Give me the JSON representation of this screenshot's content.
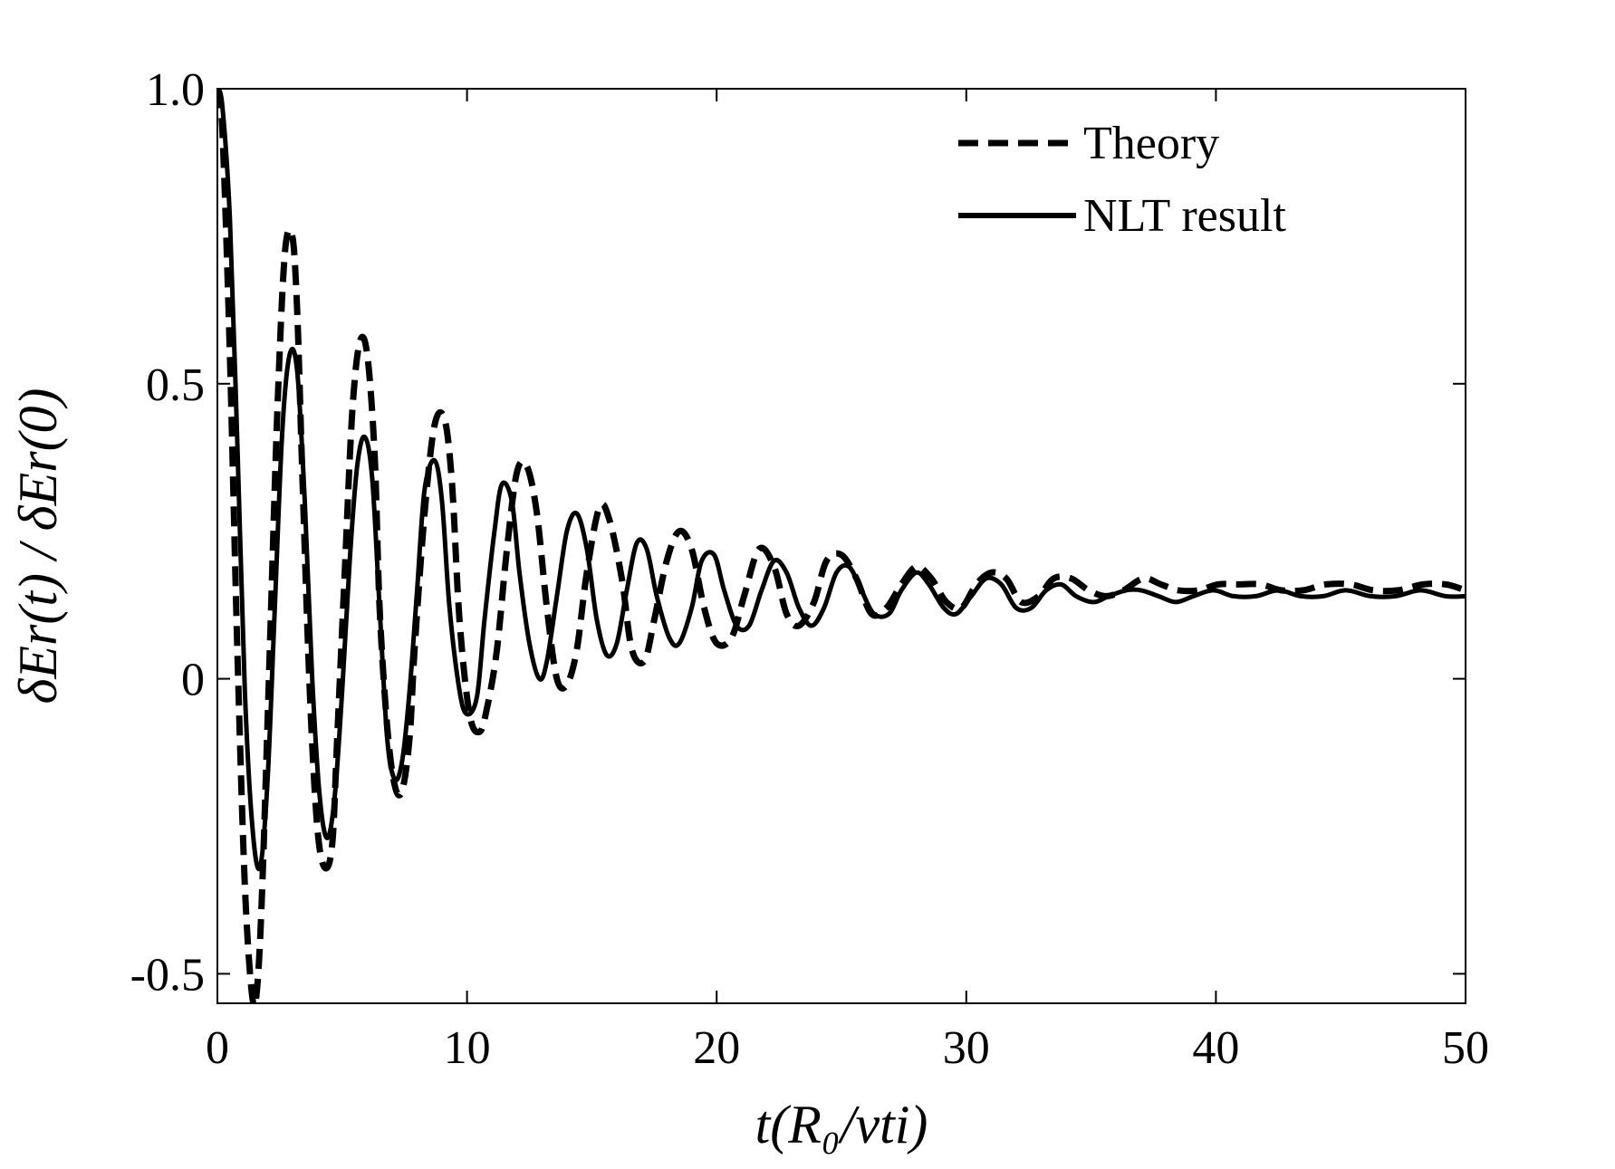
{
  "chart_data": {
    "type": "line",
    "title": "",
    "xlabel": "t(R₀/vti)",
    "ylabel": "δEr(t) / δEr(0)",
    "xlim": [
      0,
      50
    ],
    "ylim": [
      -0.55,
      1.0
    ],
    "xticks": [
      0,
      10,
      20,
      30,
      40,
      50
    ],
    "xtick_labels": [
      "0",
      "10",
      "20",
      "30",
      "40",
      "50"
    ],
    "yticks": [
      -0.5,
      0,
      0.5,
      1.0
    ],
    "ytick_labels": [
      "-0.5",
      "0",
      "0.5",
      "1.0"
    ],
    "grid": false,
    "legend_position": "top-right",
    "series": [
      {
        "name": "Theory",
        "style": "dashed",
        "color": "#000000",
        "x": [
          0,
          0.2,
          0.5,
          0.8,
          1.1,
          1.4,
          1.6,
          1.8,
          2.1,
          2.4,
          2.7,
          3.0,
          3.2,
          3.4,
          3.7,
          4.0,
          4.3,
          4.6,
          4.8,
          5.1,
          5.4,
          5.7,
          6.0,
          6.3,
          6.5,
          6.8,
          7.1,
          7.4,
          7.7,
          7.9,
          8.3,
          8.7,
          9.1,
          9.4,
          9.7,
          10.1,
          10.5,
          10.8,
          11.2,
          11.6,
          12.0,
          12.4,
          12.8,
          13.2,
          13.6,
          14.0,
          14.4,
          14.8,
          15.3,
          15.7,
          16.2,
          16.6,
          17.1,
          17.5,
          18.0,
          18.5,
          19.0,
          19.5,
          20.0,
          20.6,
          21.1,
          21.7,
          22.3,
          22.8,
          23.3,
          23.9,
          24.4,
          25.0,
          25.6,
          26.2,
          26.8,
          27.4,
          28.0,
          28.6,
          29.2,
          29.8,
          30.4,
          31.0,
          31.6,
          32.2,
          32.9,
          33.5,
          34.2,
          34.9,
          35.6,
          36.3,
          37.1,
          37.8,
          38.5,
          39.3,
          40.1,
          40.9,
          41.8,
          42.6,
          43.5,
          44.4,
          45.4,
          46.3,
          47.3,
          48.3,
          49.2,
          50.0
        ],
        "y": [
          1.0,
          0.93,
          0.55,
          0.05,
          -0.35,
          -0.54,
          -0.52,
          -0.35,
          0.05,
          0.45,
          0.72,
          0.75,
          0.62,
          0.35,
          -0.02,
          -0.25,
          -0.32,
          -0.28,
          -0.1,
          0.18,
          0.45,
          0.57,
          0.55,
          0.38,
          0.12,
          -0.08,
          -0.18,
          -0.19,
          -0.1,
          0.05,
          0.28,
          0.43,
          0.44,
          0.33,
          0.1,
          -0.06,
          -0.09,
          -0.05,
          0.05,
          0.22,
          0.35,
          0.36,
          0.28,
          0.12,
          0.0,
          -0.01,
          0.05,
          0.18,
          0.29,
          0.27,
          0.17,
          0.05,
          0.03,
          0.1,
          0.2,
          0.25,
          0.22,
          0.12,
          0.06,
          0.07,
          0.14,
          0.22,
          0.19,
          0.11,
          0.09,
          0.13,
          0.2,
          0.21,
          0.17,
          0.11,
          0.12,
          0.16,
          0.19,
          0.17,
          0.13,
          0.12,
          0.16,
          0.18,
          0.17,
          0.13,
          0.14,
          0.17,
          0.17,
          0.15,
          0.14,
          0.15,
          0.17,
          0.16,
          0.15,
          0.15,
          0.16,
          0.16,
          0.16,
          0.15,
          0.15,
          0.16,
          0.16,
          0.15,
          0.15,
          0.16,
          0.16,
          0.15
        ]
      },
      {
        "name": "NLT result",
        "style": "solid",
        "color": "#000000",
        "x": [
          0,
          0.2,
          0.5,
          0.8,
          1.1,
          1.4,
          1.7,
          2.0,
          2.3,
          2.6,
          2.9,
          3.2,
          3.5,
          3.8,
          4.1,
          4.4,
          4.7,
          5.0,
          5.3,
          5.6,
          5.9,
          6.2,
          6.5,
          6.8,
          7.1,
          7.4,
          7.7,
          8.0,
          8.3,
          8.7,
          9.0,
          9.3,
          9.7,
          10.0,
          10.4,
          10.7,
          11.1,
          11.4,
          11.8,
          12.1,
          12.5,
          12.9,
          13.2,
          13.6,
          14.0,
          14.4,
          14.8,
          15.2,
          15.6,
          16.0,
          16.4,
          16.8,
          17.2,
          17.6,
          18.1,
          18.5,
          19.0,
          19.4,
          19.9,
          20.3,
          20.8,
          21.3,
          21.8,
          22.3,
          22.8,
          23.3,
          23.8,
          24.3,
          24.8,
          25.3,
          25.8,
          26.3,
          26.9,
          27.4,
          28.0,
          28.5,
          29.1,
          29.6,
          30.2,
          30.8,
          31.4,
          32.0,
          32.6,
          33.2,
          33.8,
          34.4,
          35.1,
          35.7,
          36.4,
          37.0,
          37.7,
          38.4,
          39.1,
          39.9,
          40.7,
          41.6,
          42.5,
          43.4,
          44.3,
          45.2,
          46.2,
          47.2,
          48.2,
          49.2,
          50.0
        ],
        "y": [
          1.0,
          0.97,
          0.78,
          0.4,
          -0.02,
          -0.25,
          -0.32,
          -0.18,
          0.12,
          0.42,
          0.55,
          0.52,
          0.3,
          0.0,
          -0.2,
          -0.27,
          -0.2,
          -0.02,
          0.2,
          0.36,
          0.41,
          0.34,
          0.12,
          -0.1,
          -0.17,
          -0.14,
          -0.02,
          0.15,
          0.32,
          0.37,
          0.3,
          0.12,
          -0.02,
          -0.06,
          -0.03,
          0.1,
          0.25,
          0.33,
          0.3,
          0.18,
          0.06,
          0.0,
          0.03,
          0.14,
          0.25,
          0.28,
          0.22,
          0.1,
          0.04,
          0.06,
          0.15,
          0.23,
          0.22,
          0.14,
          0.07,
          0.06,
          0.12,
          0.2,
          0.21,
          0.15,
          0.09,
          0.09,
          0.15,
          0.2,
          0.18,
          0.12,
          0.09,
          0.12,
          0.18,
          0.19,
          0.15,
          0.11,
          0.11,
          0.15,
          0.18,
          0.16,
          0.12,
          0.11,
          0.14,
          0.17,
          0.16,
          0.12,
          0.12,
          0.15,
          0.16,
          0.14,
          0.13,
          0.14,
          0.15,
          0.15,
          0.14,
          0.13,
          0.14,
          0.15,
          0.14,
          0.14,
          0.15,
          0.14,
          0.14,
          0.15,
          0.14,
          0.14,
          0.15,
          0.14,
          0.14
        ]
      }
    ]
  }
}
